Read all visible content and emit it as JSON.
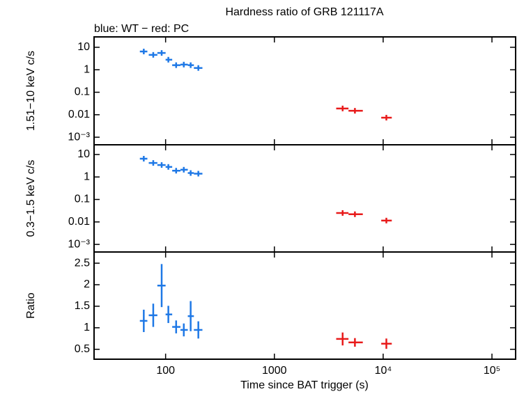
{
  "chart_data": [
    {
      "type": "scatter",
      "title": "Hardness ratio of GRB 121117A",
      "subtitle": "blue: WT − red: PC",
      "ylabel": "1.51−10 keV c/s",
      "log_x": true,
      "log_y": true,
      "xlim": [
        22,
        165000
      ],
      "xticks": [
        100,
        1000,
        10000,
        100000
      ],
      "ylim": [
        0.00046,
        29
      ],
      "yticks": [
        10,
        1,
        0.1,
        0.01,
        {
          "value": 0.001,
          "label": "10⁻³"
        }
      ],
      "series": [
        {
          "color": "#1e78e6",
          "x": [
            63,
            77,
            92,
            106,
            125,
            147,
            170,
            200
          ],
          "xmin": [
            58,
            70,
            84,
            100,
            115,
            137,
            160,
            182
          ],
          "xmax": [
            68,
            84,
            100,
            115,
            137,
            160,
            182,
            218
          ],
          "y": [
            6.5,
            4.6,
            5.6,
            2.8,
            1.6,
            1.7,
            1.6,
            1.2
          ]
        },
        {
          "color": "#e81a1a",
          "x": [
            4240,
            5500,
            10700
          ],
          "xmin": [
            3700,
            4800,
            9600
          ],
          "xmax": [
            4800,
            6500,
            12000
          ],
          "y": [
            0.019,
            0.015,
            0.0074
          ]
        }
      ]
    },
    {
      "type": "scatter",
      "ylabel": "0.3−1.5 keV c/s",
      "log_x": true,
      "log_y": true,
      "xlim": [
        22,
        165000
      ],
      "xticks": [
        100,
        1000,
        10000,
        100000
      ],
      "ylim": [
        0.00046,
        27
      ],
      "yticks": [
        10,
        1,
        0.1,
        0.01,
        {
          "value": 0.001,
          "label": "10⁻³"
        }
      ],
      "series": [
        {
          "color": "#1e78e6",
          "x": [
            63,
            77,
            92,
            106,
            125,
            147,
            170,
            200
          ],
          "xmin": [
            58,
            70,
            84,
            100,
            115,
            137,
            160,
            182
          ],
          "xmax": [
            68,
            84,
            100,
            115,
            137,
            160,
            182,
            218
          ],
          "y": [
            6.5,
            4.2,
            3.4,
            2.8,
            1.9,
            2.1,
            1.5,
            1.4
          ]
        },
        {
          "color": "#e81a1a",
          "x": [
            4240,
            5500,
            10700
          ],
          "xmin": [
            3700,
            4800,
            9600
          ],
          "xmax": [
            4800,
            6500,
            12000
          ],
          "y": [
            0.025,
            0.022,
            0.0115
          ]
        }
      ]
    },
    {
      "type": "scatter",
      "ylabel": "Ratio",
      "xlabel": "Time since BAT trigger (s)",
      "log_x": true,
      "log_y": false,
      "xlim": [
        22,
        165000
      ],
      "xticks": [
        100,
        1000,
        {
          "value": 10000,
          "label": "10⁴"
        },
        {
          "value": 100000,
          "label": "10⁵"
        }
      ],
      "ylim": [
        0.27,
        2.76
      ],
      "yticks": [
        2.5,
        2,
        1.5,
        1,
        0.5
      ],
      "series": [
        {
          "color": "#1e78e6",
          "x": [
            63,
            77,
            92,
            106,
            125,
            147,
            170,
            200
          ],
          "xmin": [
            58,
            70,
            84,
            100,
            115,
            137,
            160,
            182
          ],
          "xmax": [
            68,
            84,
            100,
            115,
            137,
            160,
            182,
            218
          ],
          "y": [
            1.16,
            1.29,
            1.98,
            1.31,
            1.02,
            0.95,
            1.27,
            0.95
          ],
          "yerr": [
            0.26,
            0.27,
            0.5,
            0.2,
            0.15,
            0.15,
            0.35,
            0.2
          ]
        },
        {
          "color": "#e81a1a",
          "x": [
            4240,
            5500,
            10700
          ],
          "xmin": [
            3700,
            4800,
            9600
          ],
          "xmax": [
            4800,
            6500,
            12000
          ],
          "y": [
            0.74,
            0.66,
            0.63
          ],
          "yerr": [
            0.15,
            0.1,
            0.12
          ]
        }
      ]
    }
  ]
}
